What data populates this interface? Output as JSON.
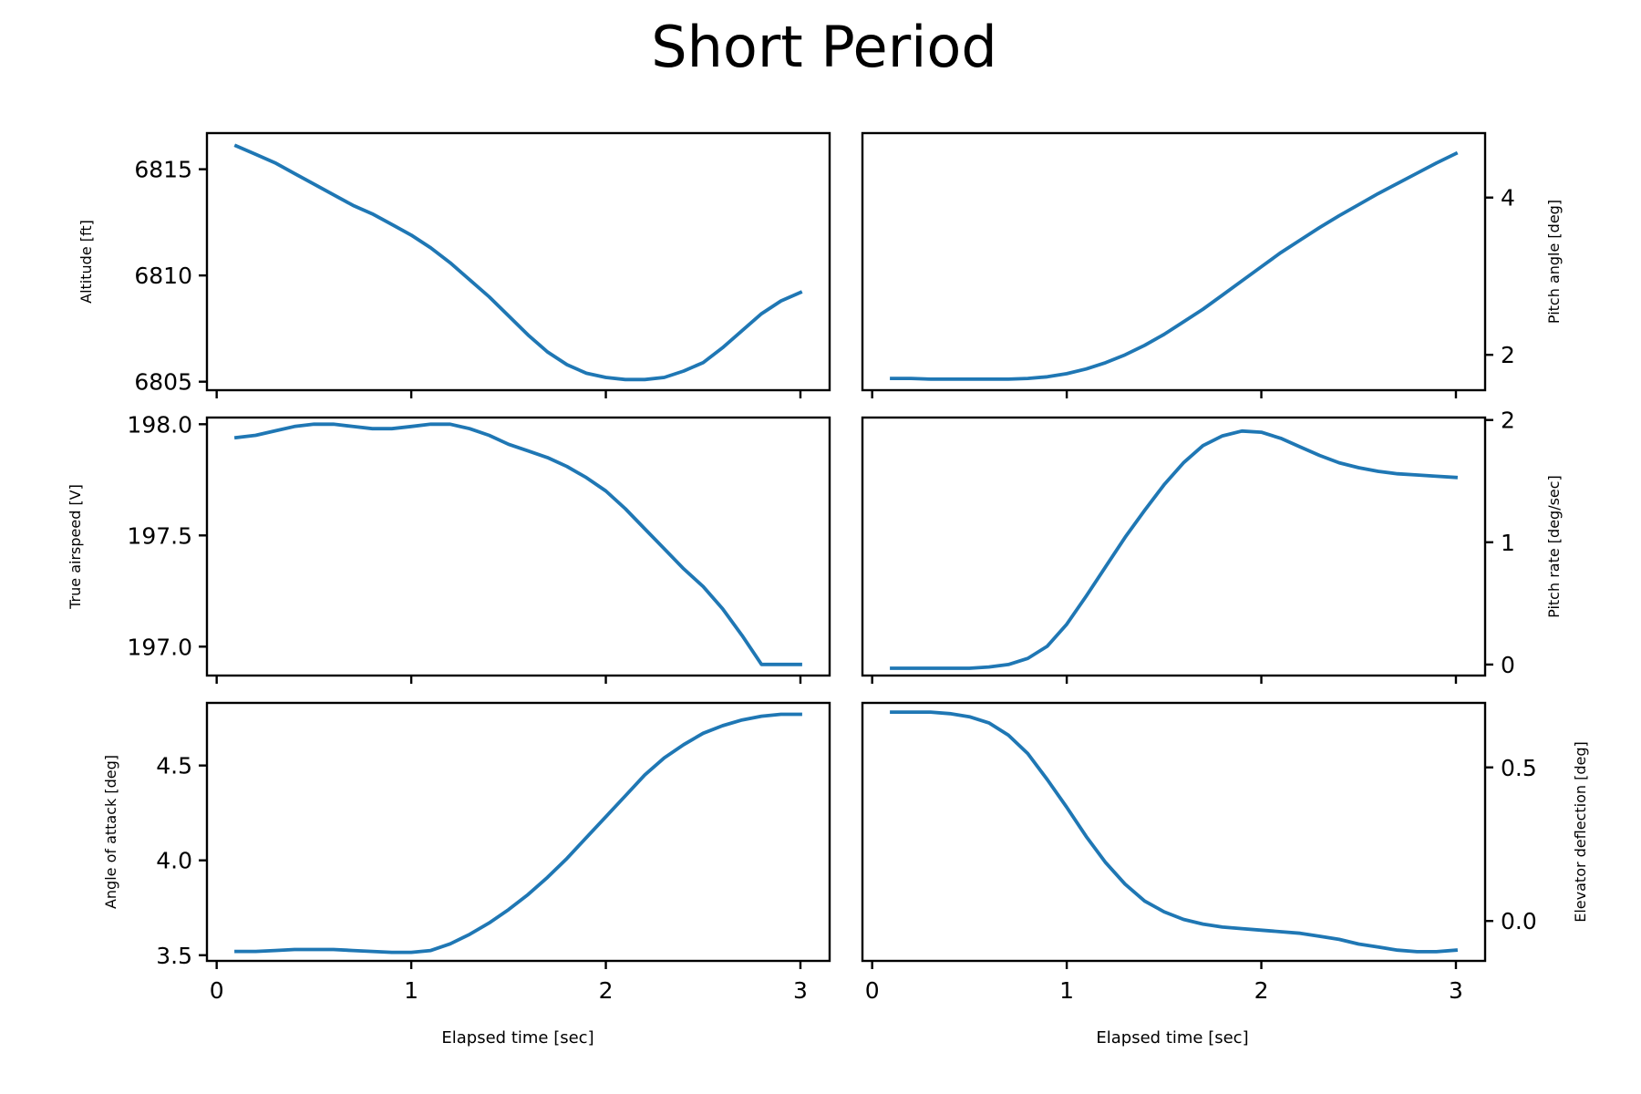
{
  "chart_data": {
    "title": "Short Period",
    "xlabel": "Elapsed time [sec]",
    "x_ticks": [
      "0",
      "1",
      "2",
      "3"
    ],
    "x_range": [
      -0.05,
      3.15
    ],
    "x": [
      0.1,
      0.2,
      0.3,
      0.4,
      0.5,
      0.6,
      0.7,
      0.8,
      0.9,
      1.0,
      1.1,
      1.2,
      1.3,
      1.4,
      1.5,
      1.6,
      1.7,
      1.8,
      1.9,
      2.0,
      2.1,
      2.2,
      2.3,
      2.4,
      2.5,
      2.6,
      2.7,
      2.8,
      2.9,
      3.0
    ],
    "subplots": [
      {
        "id": "altitude",
        "type": "line",
        "ylabel": "Altitude [ft]",
        "yaxis_side": "left",
        "ylim": [
          6804.6,
          6816.7
        ],
        "y_ticks": [
          6805,
          6810,
          6815
        ],
        "y_tick_labels": [
          "6805",
          "6810",
          "6815"
        ],
        "show_x_tick_labels": false,
        "values": [
          6816.1,
          6815.7,
          6815.3,
          6814.8,
          6814.3,
          6813.8,
          6813.3,
          6812.9,
          6812.4,
          6811.9,
          6811.3,
          6810.6,
          6809.8,
          6809.0,
          6808.1,
          6807.2,
          6806.4,
          6805.8,
          6805.4,
          6805.2,
          6805.1,
          6805.1,
          6805.2,
          6805.5,
          6805.9,
          6806.6,
          6807.4,
          6808.2,
          6808.8,
          6809.2
        ]
      },
      {
        "id": "pitch-angle",
        "type": "line",
        "ylabel": "Pitch angle [deg]",
        "yaxis_side": "right",
        "ylim": [
          1.55,
          4.82
        ],
        "y_ticks": [
          2,
          4
        ],
        "y_tick_labels": [
          "2",
          "4"
        ],
        "show_x_tick_labels": false,
        "values": [
          1.7,
          1.7,
          1.69,
          1.69,
          1.69,
          1.69,
          1.69,
          1.7,
          1.72,
          1.76,
          1.82,
          1.9,
          2.0,
          2.12,
          2.26,
          2.42,
          2.58,
          2.76,
          2.94,
          3.12,
          3.3,
          3.46,
          3.62,
          3.77,
          3.91,
          4.05,
          4.18,
          4.31,
          4.44,
          4.56
        ]
      },
      {
        "id": "true-airspeed",
        "type": "line",
        "ylabel": "True airspeed [V]",
        "yaxis_side": "left",
        "ylim": [
          196.87,
          198.03
        ],
        "y_ticks": [
          197.0,
          197.5,
          198.0
        ],
        "y_tick_labels": [
          "197.0",
          "197.5",
          "198.0"
        ],
        "show_x_tick_labels": false,
        "values": [
          197.94,
          197.95,
          197.97,
          197.99,
          198.0,
          198.0,
          197.99,
          197.98,
          197.98,
          197.99,
          198.0,
          198.0,
          197.98,
          197.95,
          197.91,
          197.88,
          197.85,
          197.81,
          197.76,
          197.7,
          197.62,
          197.53,
          197.44,
          197.35,
          197.27,
          197.17,
          197.05,
          196.92,
          196.92,
          196.92
        ]
      },
      {
        "id": "pitch-rate",
        "type": "line",
        "ylabel": "Pitch rate [deg/sec]",
        "yaxis_side": "right",
        "ylim": [
          -0.09,
          2.02
        ],
        "y_ticks": [
          0,
          1,
          2
        ],
        "y_tick_labels": [
          "0",
          "1",
          "2"
        ],
        "show_x_tick_labels": false,
        "values": [
          -0.03,
          -0.03,
          -0.03,
          -0.03,
          -0.03,
          -0.02,
          0.0,
          0.05,
          0.15,
          0.33,
          0.56,
          0.8,
          1.04,
          1.26,
          1.47,
          1.65,
          1.79,
          1.87,
          1.91,
          1.9,
          1.85,
          1.78,
          1.71,
          1.65,
          1.61,
          1.58,
          1.56,
          1.55,
          1.54,
          1.53
        ]
      },
      {
        "id": "angle-of-attack",
        "type": "line",
        "ylabel": "Angle of attack [deg]",
        "yaxis_side": "left",
        "ylim": [
          3.47,
          4.83
        ],
        "y_ticks": [
          3.5,
          4.0,
          4.5
        ],
        "y_tick_labels": [
          "3.5",
          "4.0",
          "4.5"
        ],
        "show_x_tick_labels": true,
        "values": [
          3.52,
          3.52,
          3.525,
          3.53,
          3.53,
          3.53,
          3.525,
          3.52,
          3.515,
          3.515,
          3.525,
          3.56,
          3.61,
          3.67,
          3.74,
          3.82,
          3.91,
          4.01,
          4.12,
          4.23,
          4.34,
          4.45,
          4.54,
          4.61,
          4.67,
          4.71,
          4.74,
          4.76,
          4.77,
          4.77
        ]
      },
      {
        "id": "elevator-deflection",
        "type": "line",
        "ylabel": "Elevator deflection [deg]",
        "yaxis_side": "right",
        "ylim": [
          -0.13,
          0.71
        ],
        "y_ticks": [
          0.0,
          0.5
        ],
        "y_tick_labels": [
          "0.0",
          "0.5"
        ],
        "show_x_tick_labels": true,
        "values": [
          0.68,
          0.68,
          0.68,
          0.675,
          0.665,
          0.645,
          0.605,
          0.545,
          0.46,
          0.37,
          0.275,
          0.19,
          0.12,
          0.065,
          0.03,
          0.005,
          -0.01,
          -0.02,
          -0.025,
          -0.03,
          -0.035,
          -0.04,
          -0.05,
          -0.06,
          -0.075,
          -0.085,
          -0.095,
          -0.1,
          -0.1,
          -0.095
        ]
      }
    ]
  }
}
